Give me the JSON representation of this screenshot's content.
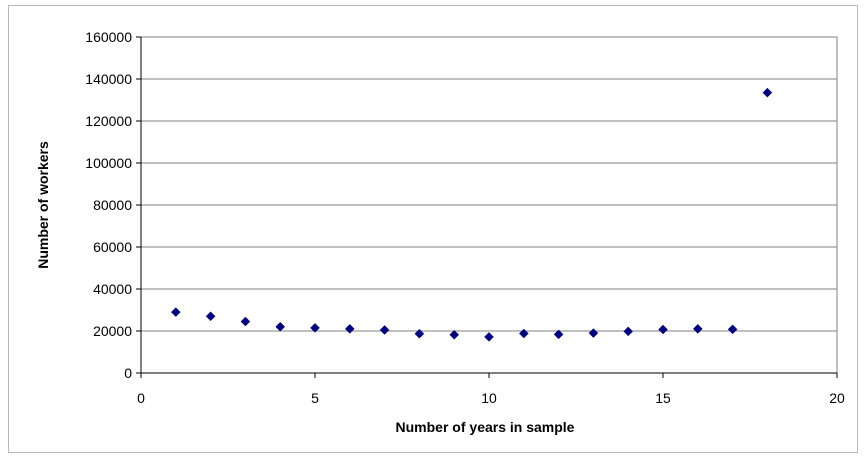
{
  "chart_data": {
    "type": "scatter",
    "title": "",
    "xlabel": "Number of years in sample",
    "ylabel": "Number of workers",
    "xlim": [
      0,
      20
    ],
    "ylim": [
      0,
      160000
    ],
    "x_ticks": [
      0,
      5,
      10,
      15,
      20
    ],
    "y_ticks": [
      0,
      20000,
      40000,
      60000,
      80000,
      100000,
      120000,
      140000,
      160000
    ],
    "grid": "horizontal",
    "legend": "none",
    "marker": "diamond",
    "marker_color": "#000080",
    "points": [
      {
        "x": 1,
        "y": 29000
      },
      {
        "x": 2,
        "y": 27000
      },
      {
        "x": 3,
        "y": 24500
      },
      {
        "x": 4,
        "y": 22000
      },
      {
        "x": 5,
        "y": 21500
      },
      {
        "x": 6,
        "y": 21000
      },
      {
        "x": 7,
        "y": 20500
      },
      {
        "x": 8,
        "y": 18700
      },
      {
        "x": 9,
        "y": 18200
      },
      {
        "x": 10,
        "y": 17200
      },
      {
        "x": 11,
        "y": 18800
      },
      {
        "x": 12,
        "y": 18400
      },
      {
        "x": 13,
        "y": 19000
      },
      {
        "x": 14,
        "y": 19800
      },
      {
        "x": 15,
        "y": 20700
      },
      {
        "x": 16,
        "y": 21000
      },
      {
        "x": 17,
        "y": 20800
      },
      {
        "x": 18,
        "y": 133500
      }
    ]
  }
}
